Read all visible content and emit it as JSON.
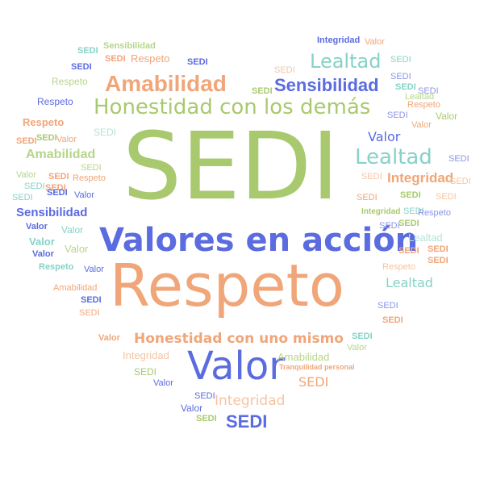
{
  "palette": {
    "green": "#a9c96f",
    "orange": "#f0a679",
    "teal": "#86d2c8",
    "blue": "#5b6be0"
  },
  "words": [
    "SEDI",
    "Respeto",
    "Valores en acción",
    "Honestidad con los demás",
    "Valor",
    "Amabilidad",
    "Sensibilidad",
    "Lealtad",
    "Integridad",
    "Honestidad con uno mismo",
    "Tranquilidad personal"
  ]
}
